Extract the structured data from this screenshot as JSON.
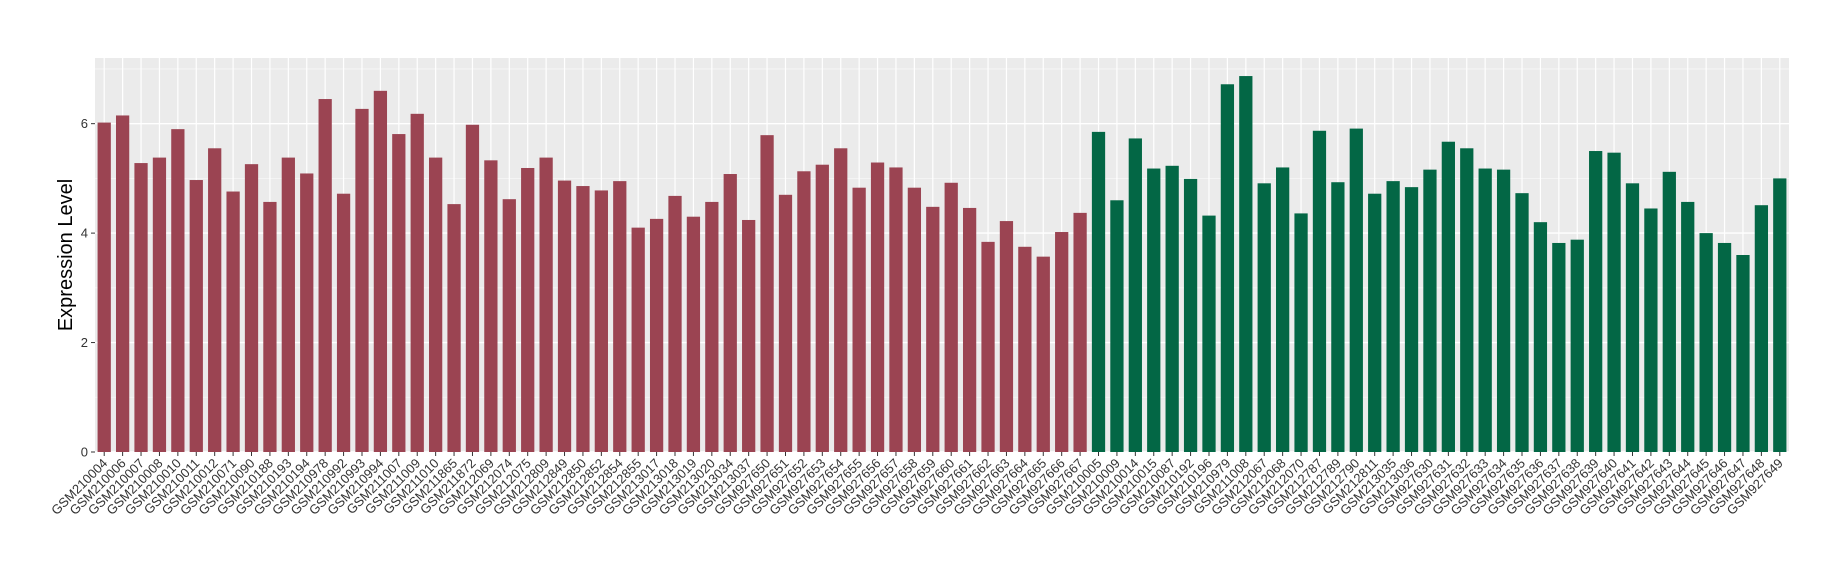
{
  "chart_data": {
    "type": "bar",
    "title": "",
    "xlabel": "",
    "ylabel": "Expression Level",
    "ylim": [
      0,
      7.2
    ],
    "yticks": [
      0,
      2,
      4,
      6
    ],
    "ytick_labels": [
      "0",
      "2",
      "4",
      "6"
    ],
    "grid": true,
    "legend": "none",
    "group_colors": [
      "#9b4452",
      "#036745"
    ],
    "categories": [
      "GSM210004",
      "GSM210006",
      "GSM210007",
      "GSM210008",
      "GSM210010",
      "GSM210011",
      "GSM210012",
      "GSM210071",
      "GSM210090",
      "GSM210188",
      "GSM210193",
      "GSM210194",
      "GSM210978",
      "GSM210992",
      "GSM210993",
      "GSM210994",
      "GSM211007",
      "GSM211009",
      "GSM211010",
      "GSM211865",
      "GSM211872",
      "GSM212069",
      "GSM212074",
      "GSM212075",
      "GSM212809",
      "GSM212849",
      "GSM212850",
      "GSM212852",
      "GSM212854",
      "GSM212855",
      "GSM213017",
      "GSM213018",
      "GSM213019",
      "GSM213020",
      "GSM213034",
      "GSM213037",
      "GSM927650",
      "GSM927651",
      "GSM927652",
      "GSM927653",
      "GSM927654",
      "GSM927655",
      "GSM927656",
      "GSM927657",
      "GSM927658",
      "GSM927659",
      "GSM927660",
      "GSM927661",
      "GSM927662",
      "GSM927663",
      "GSM927664",
      "GSM927665",
      "GSM927666",
      "GSM927667",
      "GSM210005",
      "GSM210009",
      "GSM210014",
      "GSM210015",
      "GSM210087",
      "GSM210192",
      "GSM210196",
      "GSM210979",
      "GSM211008",
      "GSM212067",
      "GSM212068",
      "GSM212070",
      "GSM212787",
      "GSM212789",
      "GSM212790",
      "GSM212811",
      "GSM213035",
      "GSM213036",
      "GSM927630",
      "GSM927631",
      "GSM927632",
      "GSM927633",
      "GSM927634",
      "GSM927635",
      "GSM927636",
      "GSM927637",
      "GSM927638",
      "GSM927639",
      "GSM927640",
      "GSM927641",
      "GSM927642",
      "GSM927643",
      "GSM927644",
      "GSM927645",
      "GSM927646",
      "GSM927647",
      "GSM927648",
      "GSM927649"
    ],
    "values": [
      6.02,
      6.15,
      5.28,
      5.38,
      5.9,
      4.97,
      5.55,
      4.76,
      5.26,
      4.57,
      5.38,
      5.09,
      6.45,
      4.72,
      6.27,
      6.6,
      5.81,
      6.18,
      5.38,
      4.53,
      5.98,
      5.33,
      4.62,
      5.19,
      5.38,
      4.96,
      4.86,
      4.78,
      4.95,
      4.1,
      4.26,
      4.68,
      4.3,
      4.57,
      5.08,
      4.24,
      5.79,
      4.7,
      5.13,
      5.25,
      5.55,
      4.83,
      5.29,
      5.2,
      4.83,
      4.48,
      4.92,
      4.46,
      3.84,
      4.22,
      3.75,
      3.57,
      4.02,
      4.37,
      5.85,
      4.6,
      5.73,
      5.18,
      5.23,
      4.99,
      4.32,
      6.72,
      6.87,
      4.91,
      5.2,
      4.36,
      5.87,
      4.93,
      5.91,
      4.72,
      4.95,
      4.84,
      5.16,
      5.67,
      5.55,
      5.18,
      5.16,
      4.73,
      4.2,
      3.82,
      3.88,
      5.5,
      5.47,
      4.91,
      4.45,
      5.12,
      4.57,
      4.0,
      3.82,
      3.6,
      4.51,
      5.0
    ],
    "groups": [
      0,
      0,
      0,
      0,
      0,
      0,
      0,
      0,
      0,
      0,
      0,
      0,
      0,
      0,
      0,
      0,
      0,
      0,
      0,
      0,
      0,
      0,
      0,
      0,
      0,
      0,
      0,
      0,
      0,
      0,
      0,
      0,
      0,
      0,
      0,
      0,
      0,
      0,
      0,
      0,
      0,
      0,
      0,
      0,
      0,
      0,
      0,
      0,
      0,
      0,
      0,
      0,
      0,
      0,
      1,
      1,
      1,
      1,
      1,
      1,
      1,
      1,
      1,
      1,
      1,
      1,
      1,
      1,
      1,
      1,
      1,
      1,
      1,
      1,
      1,
      1,
      1,
      1,
      1,
      1,
      1,
      1,
      1,
      1,
      1,
      1,
      1,
      1,
      1,
      1,
      1,
      1
    ]
  }
}
